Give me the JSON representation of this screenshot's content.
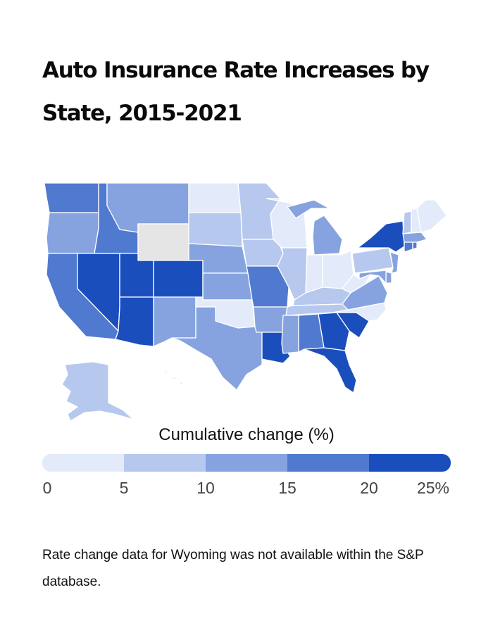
{
  "title": "Auto Insurance Rate Increases by State, 2015-2021",
  "legend": {
    "title": "Cumulative change (%)",
    "ticks": [
      "0",
      "5",
      "10",
      "15",
      "20",
      "25%"
    ],
    "bins": [
      {
        "min": 0,
        "max": 5,
        "color": "#e3ebfa"
      },
      {
        "min": 5,
        "max": 10,
        "color": "#b6c8ee"
      },
      {
        "min": 10,
        "max": 15,
        "color": "#86a3e0"
      },
      {
        "min": 15,
        "max": 20,
        "color": "#5079d0"
      },
      {
        "min": 20,
        "max": 25,
        "color": "#1b4ebd"
      }
    ],
    "no_data_color": "#e5e5e5"
  },
  "note": "Rate change data for Wyoming was not available within the S&P database.",
  "states": {
    "WA": 3,
    "OR": 2,
    "CA": 3,
    "NV": 4,
    "ID": 3,
    "MT": 2,
    "WY": null,
    "UT": 4,
    "AZ": 4,
    "CO": 4,
    "NM": 2,
    "ND": 0,
    "SD": 1,
    "NE": 2,
    "KS": 2,
    "OK": 0,
    "TX": 2,
    "MN": 1,
    "IA": 1,
    "MO": 3,
    "AR": 2,
    "LA": 4,
    "WI": 0,
    "IL": 1,
    "MI": 2,
    "IN": 0,
    "OH": 0,
    "KY": 1,
    "TN": 1,
    "MS": 2,
    "AL": 3,
    "GA": 4,
    "FL": 4,
    "SC": 4,
    "NC": 0,
    "VA": 2,
    "WV": 0,
    "PA": 1,
    "NY": 4,
    "NJ": 2,
    "DE": 2,
    "MD": 2,
    "CT": 3,
    "RI": 3,
    "MA": 2,
    "VT": 1,
    "NH": 0,
    "ME": 0,
    "AK": 1,
    "HI": 0
  }
}
